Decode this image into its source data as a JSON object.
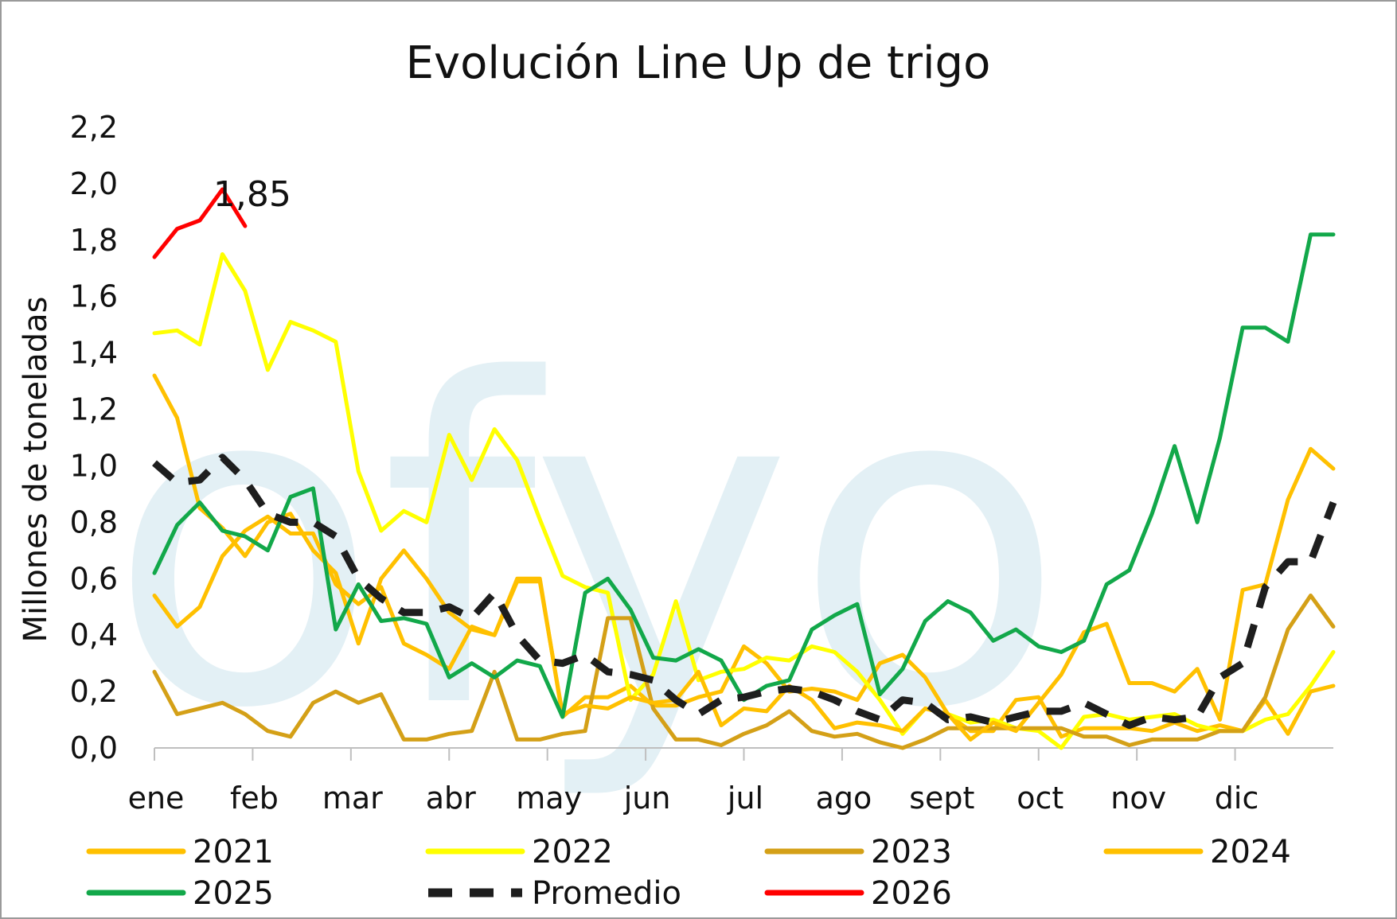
{
  "chart_data": {
    "type": "line",
    "title": "Evolución Line Up de trigo",
    "ylabel": "Millones de toneladas",
    "xlabel": "",
    "ylim": [
      0,
      2.2
    ],
    "yticks": [
      "0,0",
      "0,2",
      "0,4",
      "0,6",
      "0,8",
      "1,0",
      "1,2",
      "1,4",
      "1,6",
      "1,8",
      "2,0",
      "2,2"
    ],
    "months": [
      "ene",
      "feb",
      "mar",
      "abr",
      "may",
      "jun",
      "jul",
      "ago",
      "sept",
      "oct",
      "nov",
      "dic"
    ],
    "weeks": 53,
    "annotation": {
      "text": "1,85",
      "series": "2026",
      "week": 5
    },
    "watermark": "ofyo",
    "legend_position": "bottom",
    "series": [
      {
        "name": "2021",
        "color": "#FFC000",
        "dashed": false,
        "values": [
          1.32,
          1.17,
          0.85,
          0.78,
          0.68,
          0.8,
          0.83,
          0.7,
          0.62,
          0.37,
          0.6,
          0.7,
          0.6,
          0.48,
          0.42,
          0.4,
          0.6,
          0.6,
          0.11,
          0.18,
          0.18,
          0.22,
          0.15,
          0.15,
          0.18,
          0.2,
          0.36,
          0.3,
          0.2,
          0.21,
          0.2,
          0.17,
          0.3,
          0.33,
          0.25,
          0.12,
          0.06,
          0.06,
          0.17,
          0.18,
          0.04,
          0.07,
          0.07,
          0.07,
          0.06,
          0.09,
          0.06,
          0.08,
          0.06,
          0.17,
          0.05,
          0.2,
          0.22
        ]
      },
      {
        "name": "2022",
        "color": "#FFFF00",
        "dashed": false,
        "values": [
          1.47,
          1.48,
          1.43,
          1.75,
          1.62,
          1.34,
          1.51,
          1.48,
          1.44,
          0.98,
          0.77,
          0.84,
          0.8,
          1.11,
          0.95,
          1.13,
          1.02,
          0.81,
          0.61,
          0.57,
          0.55,
          0.17,
          0.26,
          0.52,
          0.24,
          0.27,
          0.28,
          0.32,
          0.31,
          0.36,
          0.34,
          0.27,
          0.17,
          0.05,
          0.14,
          0.12,
          0.09,
          0.1,
          0.07,
          0.06,
          0.0,
          0.11,
          0.12,
          0.1,
          0.11,
          0.12,
          0.08,
          0.06,
          0.06,
          0.1,
          0.12,
          0.22,
          0.34
        ]
      },
      {
        "name": "2023",
        "color": "#D4A017",
        "dashed": false,
        "values": [
          0.27,
          0.12,
          0.14,
          0.16,
          0.12,
          0.06,
          0.04,
          0.16,
          0.2,
          0.16,
          0.19,
          0.03,
          0.03,
          0.05,
          0.06,
          0.27,
          0.03,
          0.03,
          0.05,
          0.06,
          0.46,
          0.46,
          0.14,
          0.03,
          0.03,
          0.01,
          0.05,
          0.08,
          0.13,
          0.06,
          0.04,
          0.05,
          0.02,
          0.0,
          0.03,
          0.07,
          0.07,
          0.07,
          0.07,
          0.07,
          0.07,
          0.04,
          0.04,
          0.01,
          0.03,
          0.03,
          0.03,
          0.06,
          0.06,
          0.18,
          0.42,
          0.54,
          0.43
        ]
      },
      {
        "name": "2024",
        "color": "#FFC000",
        "dashed": false,
        "values": [
          0.54,
          0.43,
          0.5,
          0.68,
          0.77,
          0.82,
          0.76,
          0.76,
          0.58,
          0.51,
          0.57,
          0.37,
          0.33,
          0.28,
          0.43,
          0.4,
          0.59,
          0.59,
          0.12,
          0.15,
          0.14,
          0.18,
          0.16,
          0.17,
          0.27,
          0.08,
          0.14,
          0.13,
          0.22,
          0.17,
          0.07,
          0.09,
          0.08,
          0.06,
          0.14,
          0.12,
          0.03,
          0.09,
          0.06,
          0.16,
          0.26,
          0.41,
          0.44,
          0.23,
          0.23,
          0.2,
          0.28,
          0.1,
          0.56,
          0.58,
          0.88,
          1.06,
          0.99
        ]
      },
      {
        "name": "2025",
        "color": "#12A84A",
        "dashed": false,
        "values": [
          0.62,
          0.79,
          0.87,
          0.77,
          0.75,
          0.7,
          0.89,
          0.92,
          0.42,
          0.58,
          0.45,
          0.46,
          0.44,
          0.25,
          0.3,
          0.25,
          0.31,
          0.29,
          0.11,
          0.55,
          0.6,
          0.49,
          0.32,
          0.31,
          0.35,
          0.31,
          0.17,
          0.22,
          0.24,
          0.42,
          0.47,
          0.51,
          0.19,
          0.28,
          0.45,
          0.52,
          0.48,
          0.38,
          0.42,
          0.36,
          0.34,
          0.38,
          0.58,
          0.63,
          0.83,
          1.07,
          0.8,
          1.1,
          1.49,
          1.49,
          1.44,
          1.82,
          1.82
        ]
      },
      {
        "name": "Promedio",
        "color": "#1E1E1E",
        "dashed": true,
        "values": [
          1.01,
          0.94,
          0.95,
          1.03,
          0.95,
          0.83,
          0.8,
          0.8,
          0.75,
          0.6,
          0.53,
          0.48,
          0.48,
          0.5,
          0.46,
          0.55,
          0.4,
          0.31,
          0.3,
          0.33,
          0.27,
          0.26,
          0.24,
          0.17,
          0.12,
          0.17,
          0.18,
          0.2,
          0.21,
          0.2,
          0.17,
          0.13,
          0.1,
          0.17,
          0.16,
          0.1,
          0.11,
          0.09,
          0.11,
          0.13,
          0.13,
          0.16,
          0.12,
          0.08,
          0.11,
          0.1,
          0.11,
          0.25,
          0.3,
          0.57,
          0.66,
          0.66,
          0.87
        ]
      },
      {
        "name": "2026",
        "color": "#FF0000",
        "dashed": false,
        "values": [
          1.74,
          1.84,
          1.87,
          1.98,
          1.85
        ]
      }
    ]
  }
}
